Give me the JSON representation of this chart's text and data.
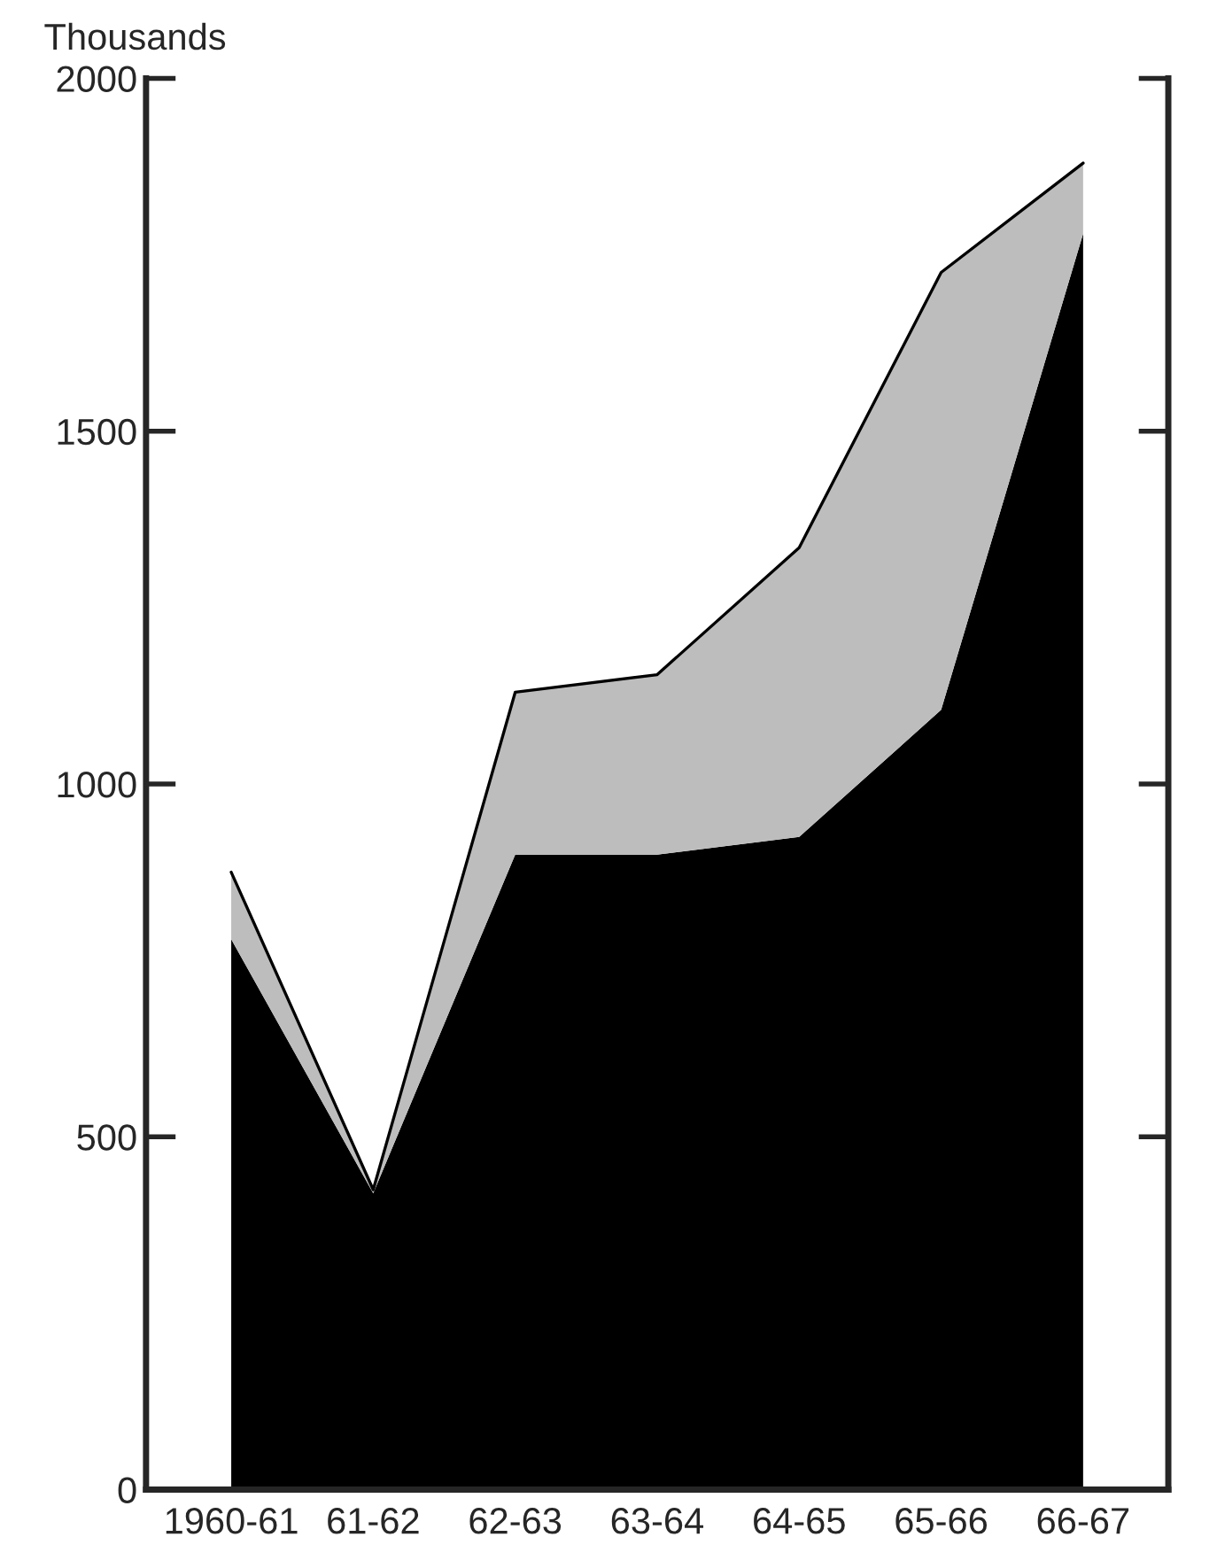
{
  "chart_data": {
    "type": "area",
    "stacked": true,
    "ylabel": "Thousands",
    "categories": [
      "1960-61",
      "61-62",
      "62-63",
      "63-64",
      "64-65",
      "65-66",
      "66-67"
    ],
    "series": [
      {
        "color": "#000000",
        "values": [
          780,
          420,
          900,
          900,
          925,
          1105,
          1780
        ]
      },
      {
        "color": "#bdbdbd",
        "values": [
          95,
          5,
          230,
          255,
          410,
          620,
          100
        ]
      }
    ],
    "ylim": [
      0,
      2000
    ],
    "yticks": [
      0,
      500,
      1000,
      1500,
      2000
    ],
    "grid": false,
    "legend": false
  }
}
